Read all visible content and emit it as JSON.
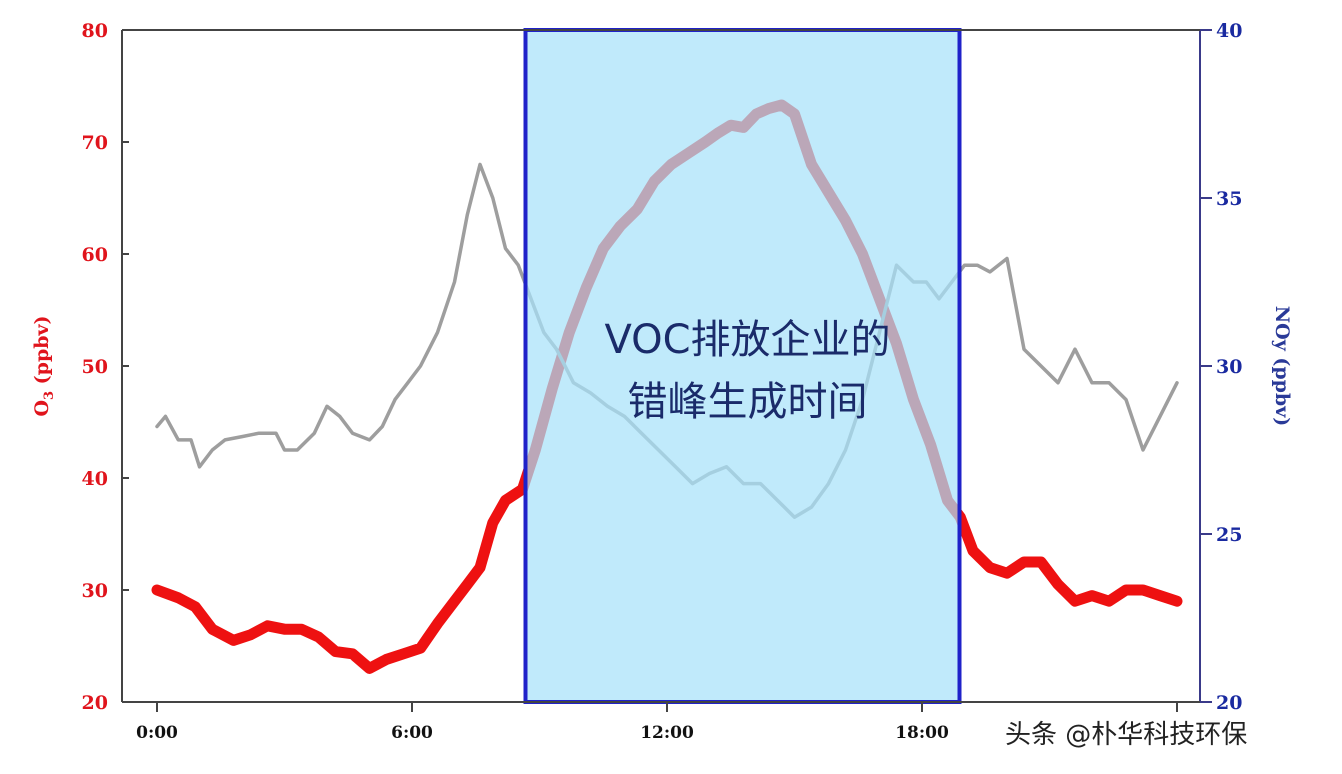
{
  "chart_data": {
    "type": "line",
    "x_ticks": [
      "0:00",
      "6:00",
      "12:00",
      "18:00"
    ],
    "xlim": [
      0,
      24
    ],
    "y_left": {
      "label_main": "O",
      "label_sub": "3",
      "label_rest": " (ppbv)",
      "ticks": [
        "20",
        "30",
        "40",
        "50",
        "60",
        "70",
        "80"
      ],
      "lim": [
        20,
        80
      ],
      "color": "#e0141c"
    },
    "y_right": {
      "label": "NOy (ppbv)",
      "ticks": [
        "20",
        "25",
        "30",
        "35",
        "40"
      ],
      "lim": [
        20,
        40
      ],
      "color": "#1a2aa0"
    },
    "series": [
      {
        "axis": "left",
        "color": "#ee1111",
        "x": [
          0,
          0.5,
          0.9,
          1.3,
          1.8,
          2.2,
          2.6,
          3.0,
          3.4,
          3.8,
          4.2,
          4.6,
          5.0,
          5.4,
          5.8,
          6.2,
          6.6,
          7.0,
          7.3,
          7.6,
          7.9,
          8.2,
          8.6,
          8.9,
          9.3,
          9.7,
          10.1,
          10.5,
          10.9,
          11.3,
          11.7,
          12.1,
          12.5,
          12.9,
          13.2,
          13.5,
          13.8,
          14.1,
          14.4,
          14.7,
          15.0,
          15.4,
          15.8,
          16.2,
          16.6,
          17.0,
          17.4,
          17.8,
          18.2,
          18.6,
          18.9,
          19.2,
          19.6,
          20.0,
          20.4,
          20.8,
          21.2,
          21.6,
          22.0,
          22.4,
          22.8,
          23.2,
          23.6,
          24.0
        ],
        "y": [
          30,
          29.3,
          28.5,
          26.5,
          25.5,
          26.0,
          26.8,
          26.5,
          26.5,
          25.8,
          24.5,
          24.3,
          23.0,
          23.8,
          24.3,
          24.8,
          27.0,
          29.0,
          30.5,
          32.0,
          36.0,
          38.0,
          39.0,
          42.5,
          48.0,
          53.0,
          57.0,
          60.5,
          62.5,
          64.0,
          66.5,
          68.0,
          69.0,
          70.0,
          70.8,
          71.5,
          71.3,
          72.5,
          73.0,
          73.3,
          72.5,
          68.0,
          65.5,
          63.0,
          60.0,
          56.0,
          52.0,
          47.0,
          43.0,
          38.0,
          36.5,
          33.5,
          32.0,
          31.5,
          32.5,
          32.5,
          30.5,
          29.0,
          29.5,
          29.0,
          30.0,
          30.0,
          29.5,
          29.0
        ]
      },
      {
        "axis": "right",
        "color": "#9e9e9e",
        "x": [
          0,
          0.2,
          0.5,
          0.8,
          1.0,
          1.3,
          1.6,
          2.0,
          2.4,
          2.8,
          3.0,
          3.3,
          3.7,
          4.0,
          4.3,
          4.6,
          5.0,
          5.3,
          5.6,
          5.9,
          6.2,
          6.6,
          7.0,
          7.3,
          7.6,
          7.9,
          8.2,
          8.5,
          8.8,
          9.1,
          9.4,
          9.8,
          10.2,
          10.6,
          11.0,
          11.4,
          11.8,
          12.2,
          12.6,
          13.0,
          13.4,
          13.8,
          14.2,
          14.6,
          15.0,
          15.4,
          15.8,
          16.2,
          16.6,
          17.0,
          17.4,
          17.8,
          18.1,
          18.4,
          18.7,
          19.0,
          19.3,
          19.6,
          20.0,
          20.4,
          20.8,
          21.2,
          21.6,
          22.0,
          22.4,
          22.8,
          23.2,
          23.6,
          24.0
        ],
        "y": [
          28.2,
          28.5,
          27.8,
          27.8,
          27.0,
          27.5,
          27.8,
          27.9,
          28.0,
          28.0,
          27.5,
          27.5,
          28.0,
          28.8,
          28.5,
          28.0,
          27.8,
          28.2,
          29.0,
          29.5,
          30.0,
          31.0,
          32.5,
          34.5,
          36.0,
          35.0,
          33.5,
          33.0,
          32.0,
          31.0,
          30.5,
          29.5,
          29.2,
          28.8,
          28.5,
          28.0,
          27.5,
          27.0,
          26.5,
          26.8,
          27.0,
          26.5,
          26.5,
          26.0,
          25.5,
          25.8,
          26.5,
          27.5,
          29.0,
          31.0,
          33.0,
          32.5,
          32.5,
          32.0,
          32.5,
          33.0,
          33.0,
          32.8,
          33.2,
          30.5,
          30.0,
          29.5,
          30.5,
          29.5,
          29.5,
          29.0,
          27.5,
          28.5,
          29.5
        ]
      }
    ],
    "highlight": {
      "x_start": 9,
      "x_end": 19,
      "fill": "#a8e2fa",
      "border": "#1f22c9"
    },
    "annotation": {
      "line1": "VOC排放企业的",
      "line2": "错峰生成时间"
    }
  },
  "watermark": "头条 @朴华科技环保"
}
